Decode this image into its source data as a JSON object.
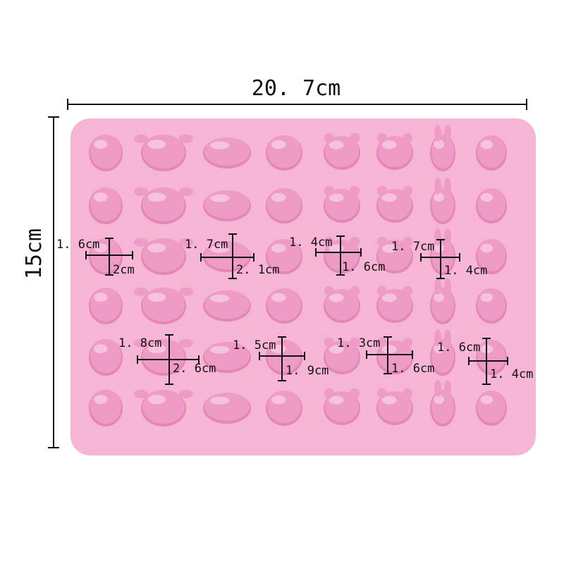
{
  "overall": {
    "width_label": "20. 7cm",
    "height_label": "15cm"
  },
  "colors": {
    "tray": "#f6b5d5",
    "cavity": "#ee9cc6",
    "cavity_shadow": "#e487b6",
    "highlight": "#fbd3e7",
    "ink": "#111111"
  },
  "cavity_shapes": [
    "penguin",
    "crab",
    "whale",
    "hedgehog",
    "bear",
    "cat",
    "rabbit",
    "shell"
  ],
  "rows": 6,
  "measurements": [
    {
      "shape": "penguin",
      "width": "1. 6cm",
      "height": "2cm"
    },
    {
      "shape": "whale",
      "width": "1. 7cm",
      "height": "2. 1cm"
    },
    {
      "shape": "bear",
      "width": "1. 4cm",
      "height": "1. 6cm"
    },
    {
      "shape": "rabbit",
      "width": "1. 7cm",
      "height": "1. 4cm"
    },
    {
      "shape": "crab",
      "width": "1. 8cm",
      "height": "2. 6cm"
    },
    {
      "shape": "hedgehog",
      "width": "1. 5cm",
      "height": "1. 9cm"
    },
    {
      "shape": "cat",
      "width": "1. 3cm",
      "height": "1. 6cm"
    },
    {
      "shape": "shell",
      "width": "1. 6cm",
      "height": "1. 4cm"
    }
  ]
}
